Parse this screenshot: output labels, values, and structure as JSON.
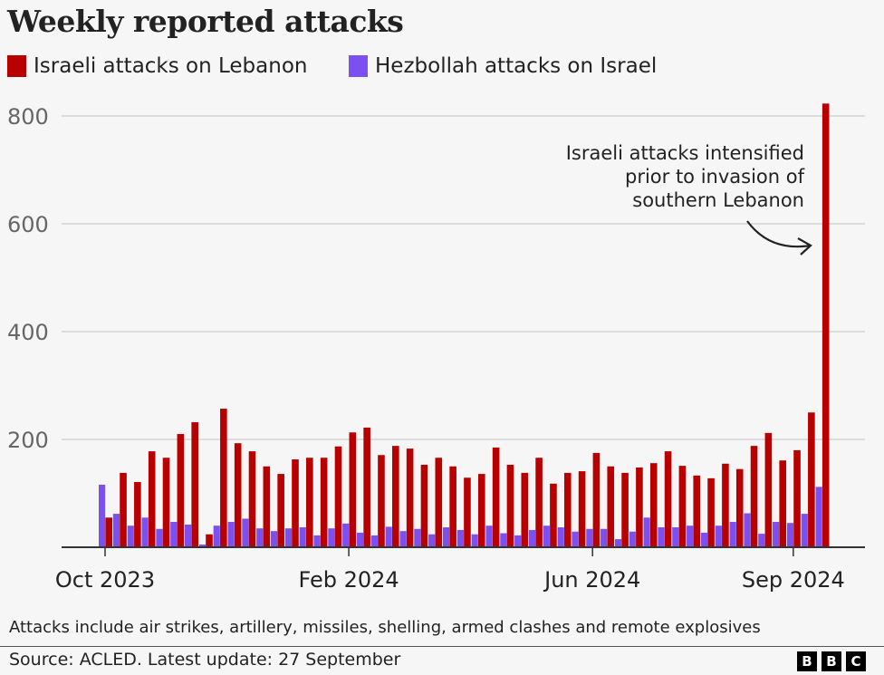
{
  "chart_data": {
    "type": "bar",
    "title": "Weekly reported attacks",
    "xlabel": "",
    "ylabel": "",
    "ylim": [
      0,
      800
    ],
    "yticks": [
      200,
      400,
      600,
      800
    ],
    "xtick_labels": [
      "Oct 2023",
      "Feb 2024",
      "Jun 2024",
      "Sep 2024"
    ],
    "grid": true,
    "legend_placement": "top-left",
    "series": [
      {
        "name": "Israeli attacks on Lebanon",
        "color": "#b80000",
        "values": [
          55,
          138,
          121,
          178,
          166,
          210,
          232,
          24,
          257,
          193,
          178,
          150,
          136,
          163,
          166,
          166,
          187,
          213,
          222,
          171,
          188,
          183,
          153,
          166,
          150,
          129,
          136,
          185,
          153,
          138,
          166,
          118,
          138,
          141,
          175,
          150,
          138,
          148,
          156,
          178,
          151,
          133,
          128,
          155,
          145,
          188,
          212,
          161,
          180,
          250,
          823
        ]
      },
      {
        "name": "Hezbollah attacks on Israel",
        "color": "#7b4ff0",
        "values": [
          116,
          62,
          40,
          55,
          34,
          47,
          42,
          5,
          40,
          47,
          53,
          35,
          30,
          35,
          37,
          22,
          35,
          44,
          27,
          22,
          38,
          30,
          34,
          24,
          37,
          32,
          24,
          40,
          26,
          22,
          32,
          40,
          37,
          29,
          34,
          34,
          15,
          29,
          55,
          37,
          37,
          40,
          27,
          40,
          47,
          63,
          25,
          47,
          45,
          62,
          112
        ]
      }
    ],
    "annotation": [
      "Israeli attacks intensified",
      "prior to invasion of",
      "southern Lebanon"
    ]
  },
  "footer": {
    "note": "Attacks include air strikes, artillery, missiles, shelling, armed clashes and remote explosives",
    "source": "Source: ACLED. Latest update: 27 September",
    "logo": [
      "B",
      "B",
      "C"
    ]
  }
}
